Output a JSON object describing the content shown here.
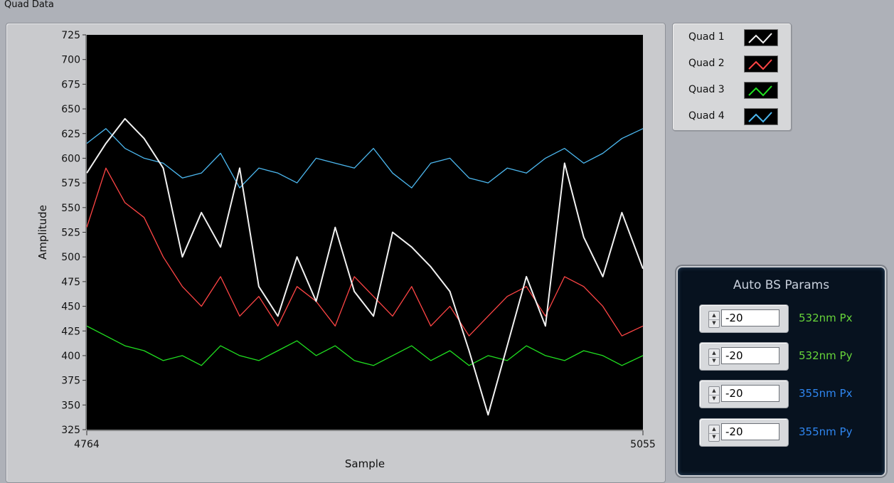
{
  "section_label": "Quad Data",
  "colors": {
    "plot_bg": "#000000",
    "quad1": "#f2f2f2",
    "quad2": "#ff4545",
    "quad3": "#20e020",
    "quad4": "#4cb8f0",
    "param_green": "#67d43a",
    "param_blue": "#2f86f0"
  },
  "legend": {
    "items": [
      {
        "label": "Quad 1",
        "color": "#f2f2f2"
      },
      {
        "label": "Quad 2",
        "color": "#ff4545"
      },
      {
        "label": "Quad 3",
        "color": "#20e020"
      },
      {
        "label": "Quad 4",
        "color": "#4cb8f0"
      }
    ]
  },
  "params": {
    "title": "Auto BS Params",
    "rows": [
      {
        "value": "-20",
        "label": "532nm Px",
        "color": "#67d43a"
      },
      {
        "value": "-20",
        "label": "532nm Py",
        "color": "#67d43a"
      },
      {
        "value": "-20",
        "label": "355nm Px",
        "color": "#2f86f0"
      },
      {
        "value": "-20",
        "label": "355nm Py",
        "color": "#2f86f0"
      }
    ]
  },
  "chart_data": {
    "type": "line",
    "title": "",
    "xlabel": "Sample",
    "ylabel": "Amplitude",
    "xlim": [
      4764,
      5055
    ],
    "ylim": [
      325,
      725
    ],
    "x_tick_labels": [
      "4764",
      "5055"
    ],
    "y_ticks": [
      325,
      350,
      375,
      400,
      425,
      450,
      475,
      500,
      525,
      550,
      575,
      600,
      625,
      650,
      675,
      700,
      725
    ],
    "grid": false,
    "legend_position": "right",
    "series": [
      {
        "name": "Quad 1",
        "color": "#f2f2f2",
        "x": [
          4764,
          4774,
          4784,
          4794,
          4804,
          4814,
          4824,
          4834,
          4844,
          4854,
          4864,
          4874,
          4884,
          4894,
          4904,
          4914,
          4924,
          4934,
          4944,
          4954,
          4964,
          4974,
          4984,
          4994,
          5004,
          5014,
          5024,
          5034,
          5044,
          5055
        ],
        "values": [
          585,
          615,
          640,
          620,
          590,
          500,
          545,
          510,
          590,
          470,
          440,
          500,
          455,
          530,
          465,
          440,
          525,
          510,
          490,
          465,
          405,
          340,
          410,
          480,
          430,
          595,
          520,
          480,
          545,
          488
        ]
      },
      {
        "name": "Quad 2",
        "color": "#ff4545",
        "x": [
          4764,
          4774,
          4784,
          4794,
          4804,
          4814,
          4824,
          4834,
          4844,
          4854,
          4864,
          4874,
          4884,
          4894,
          4904,
          4914,
          4924,
          4934,
          4944,
          4954,
          4964,
          4974,
          4984,
          4994,
          5004,
          5014,
          5024,
          5034,
          5044,
          5055
        ],
        "values": [
          530,
          590,
          555,
          540,
          500,
          470,
          450,
          480,
          440,
          460,
          430,
          470,
          455,
          430,
          480,
          460,
          440,
          470,
          430,
          450,
          420,
          440,
          460,
          470,
          440,
          480,
          470,
          450,
          420,
          430
        ]
      },
      {
        "name": "Quad 3",
        "color": "#20e020",
        "x": [
          4764,
          4774,
          4784,
          4794,
          4804,
          4814,
          4824,
          4834,
          4844,
          4854,
          4864,
          4874,
          4884,
          4894,
          4904,
          4914,
          4924,
          4934,
          4944,
          4954,
          4964,
          4974,
          4984,
          4994,
          5004,
          5014,
          5024,
          5034,
          5044,
          5055
        ],
        "values": [
          430,
          420,
          410,
          405,
          395,
          400,
          390,
          410,
          400,
          395,
          405,
          415,
          400,
          410,
          395,
          390,
          400,
          410,
          395,
          405,
          390,
          400,
          395,
          410,
          400,
          395,
          405,
          400,
          390,
          400
        ]
      },
      {
        "name": "Quad 4",
        "color": "#4cb8f0",
        "x": [
          4764,
          4774,
          4784,
          4794,
          4804,
          4814,
          4824,
          4834,
          4844,
          4854,
          4864,
          4874,
          4884,
          4894,
          4904,
          4914,
          4924,
          4934,
          4944,
          4954,
          4964,
          4974,
          4984,
          4994,
          5004,
          5014,
          5024,
          5034,
          5044,
          5055
        ],
        "values": [
          615,
          630,
          610,
          600,
          595,
          580,
          585,
          605,
          570,
          590,
          585,
          575,
          600,
          595,
          590,
          610,
          585,
          570,
          595,
          600,
          580,
          575,
          590,
          585,
          600,
          610,
          595,
          605,
          620,
          630
        ]
      }
    ]
  }
}
